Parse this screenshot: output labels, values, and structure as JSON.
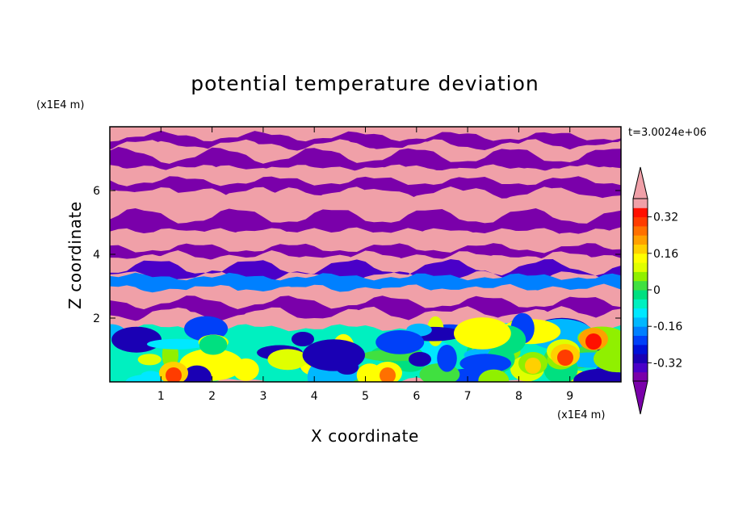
{
  "chart_data": {
    "type": "heatmap",
    "title": "potential temperature deviation",
    "xlabel": "X coordinate",
    "ylabel": "Z coordinate",
    "x_unit": "(x1E4 m)",
    "y_unit": "(x1E4 m)",
    "time_label": "t=3.0024e+06",
    "xlim": [
      0,
      10
    ],
    "ylim": [
      0,
      8
    ],
    "x_ticks": [
      "1",
      "2",
      "3",
      "4",
      "5",
      "6",
      "7",
      "8",
      "9"
    ],
    "y_ticks": [
      "2",
      "4",
      "6"
    ],
    "colorbar": {
      "tick_labels": [
        "0.32",
        "0.16",
        "0",
        "-0.16",
        "-0.32"
      ],
      "tick_values": [
        0.32,
        0.16,
        0,
        -0.16,
        -0.32
      ],
      "levels": [
        -0.4,
        -0.36,
        -0.32,
        -0.28,
        -0.24,
        -0.2,
        -0.16,
        -0.12,
        -0.08,
        -0.04,
        0,
        0.04,
        0.08,
        0.12,
        0.16,
        0.2,
        0.24,
        0.28,
        0.32,
        0.36,
        0.4
      ],
      "colors": [
        "#7a00aa",
        "#4a00c8",
        "#1a00b4",
        "#0010d8",
        "#0040f8",
        "#0080ff",
        "#00b8ff",
        "#00e8ff",
        "#00f0c0",
        "#00e080",
        "#40e040",
        "#90f000",
        "#e0ff00",
        "#ffff00",
        "#ffd000",
        "#ffa000",
        "#ff7000",
        "#ff3c00",
        "#ff1000",
        "#f0a0a8"
      ],
      "under_color": "#7a00aa",
      "over_color": "#f0a0a8"
    },
    "field": {
      "description_rows_top_to_bottom": "banded",
      "bands": [
        {
          "z0": 7.7,
          "z1": 8.0,
          "value": 0.45
        },
        {
          "z0": 7.4,
          "z1": 7.7,
          "value": -0.45
        },
        {
          "z0": 7.1,
          "z1": 7.4,
          "value": 0.45
        },
        {
          "z0": 6.7,
          "z1": 7.1,
          "value": -0.45
        },
        {
          "z0": 6.3,
          "z1": 6.7,
          "value": 0.45
        },
        {
          "z0": 5.9,
          "z1": 6.3,
          "value": -0.45
        },
        {
          "z0": 5.2,
          "z1": 5.9,
          "value": 0.45
        },
        {
          "z0": 4.7,
          "z1": 5.2,
          "value": -0.45
        },
        {
          "z0": 4.2,
          "z1": 4.7,
          "value": 0.45
        },
        {
          "z0": 3.9,
          "z1": 4.2,
          "value": -0.38
        },
        {
          "z0": 3.6,
          "z1": 3.9,
          "value": 0.45
        },
        {
          "z0": 3.3,
          "z1": 3.6,
          "value": -0.34
        },
        {
          "z0": 2.9,
          "z1": 3.3,
          "value": -0.2
        },
        {
          "z0": 2.5,
          "z1": 2.9,
          "value": 0.45
        },
        {
          "z0": 2.1,
          "z1": 2.5,
          "value": -0.45
        },
        {
          "z0": 1.7,
          "z1": 2.1,
          "value": 0.45
        },
        {
          "z0": 0.0,
          "z1": 1.7,
          "value": -0.05
        }
      ]
    }
  }
}
